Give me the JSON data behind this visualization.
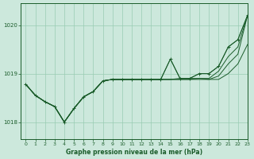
{
  "xlabel": "Graphe pression niveau de la mer (hPa)",
  "background_color": "#cce8dc",
  "grid_color": "#99ccb3",
  "line_color": "#1a5c2a",
  "xlim": [
    -0.5,
    23
  ],
  "ylim": [
    1017.65,
    1020.45
  ],
  "yticks": [
    1018,
    1019,
    1020
  ],
  "xticks": [
    0,
    1,
    2,
    3,
    4,
    5,
    6,
    7,
    8,
    9,
    10,
    11,
    12,
    13,
    14,
    15,
    16,
    17,
    18,
    19,
    20,
    21,
    22,
    23
  ],
  "series": [
    [
      1018.78,
      1018.55,
      1018.42,
      1018.32,
      1018.0,
      1018.28,
      1018.52,
      1018.63,
      1018.85,
      1018.88,
      1018.88,
      1018.88,
      1018.88,
      1018.88,
      1018.88,
      1019.3,
      1018.9,
      1018.9,
      1019.0,
      1019.0,
      1019.15,
      1019.55,
      1019.7,
      1020.2
    ],
    [
      1018.78,
      1018.55,
      1018.42,
      1018.32,
      1018.0,
      1018.28,
      1018.52,
      1018.63,
      1018.85,
      1018.88,
      1018.88,
      1018.88,
      1018.88,
      1018.88,
      1018.88,
      1018.88,
      1018.9,
      1018.9,
      1018.9,
      1018.9,
      1019.05,
      1019.35,
      1019.55,
      1020.2
    ],
    [
      1018.78,
      1018.55,
      1018.42,
      1018.32,
      1018.0,
      1018.28,
      1018.52,
      1018.63,
      1018.85,
      1018.88,
      1018.88,
      1018.88,
      1018.88,
      1018.88,
      1018.88,
      1018.88,
      1018.88,
      1018.88,
      1018.9,
      1018.88,
      1018.95,
      1019.2,
      1019.4,
      1020.2
    ],
    [
      1018.78,
      1018.55,
      1018.42,
      1018.32,
      1018.0,
      1018.28,
      1018.52,
      1018.63,
      1018.85,
      1018.88,
      1018.88,
      1018.88,
      1018.88,
      1018.88,
      1018.88,
      1018.88,
      1018.88,
      1018.88,
      1018.88,
      1018.88,
      1018.88,
      1019.0,
      1019.2,
      1019.6
    ]
  ],
  "marker_series": [
    1018.78,
    1018.55,
    1018.42,
    1018.32,
    1018.0,
    1018.28,
    1018.52,
    1018.63,
    1018.85,
    1018.88,
    1018.88,
    1018.88,
    1018.88,
    1018.88,
    1018.88,
    1019.3,
    1018.9,
    1018.9,
    1019.0,
    1019.0,
    1019.15,
    1019.55,
    1019.7,
    1020.2
  ],
  "figsize": [
    3.2,
    2.0
  ],
  "dpi": 100
}
